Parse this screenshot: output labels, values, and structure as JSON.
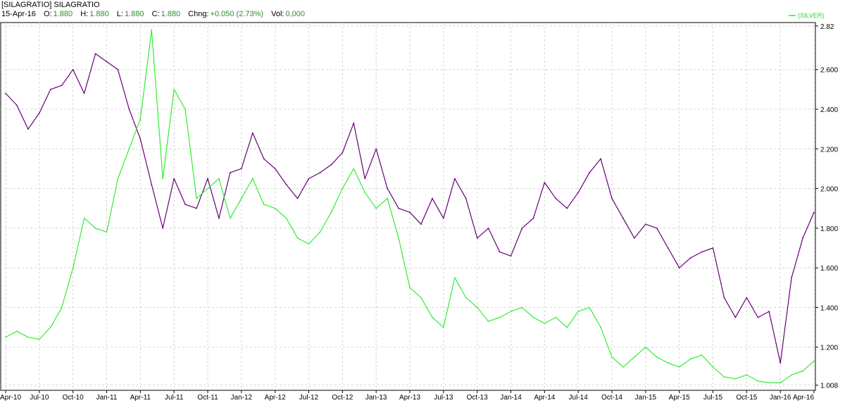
{
  "header": {
    "symbol": "[SILAGRATIO] SILAGRATIO",
    "date": "15-Apr-16",
    "open_label": "O:",
    "open": "1.880",
    "high_label": "H:",
    "high": "1.880",
    "low_label": "L:",
    "low": "1.880",
    "close_label": "C:",
    "close": "1.880",
    "change_label": "Chng:",
    "change": "+0.050 (2.73%)",
    "vol_label": "Vol:",
    "vol": "0,000"
  },
  "chart_data": {
    "type": "line",
    "title": "",
    "xlabel": "",
    "ylabel": "",
    "ylim": [
      1.0,
      2.83
    ],
    "grid": true,
    "legend_position": "top-right",
    "y_ticks": [
      "1.008",
      "1.200",
      "1.400",
      "1.600",
      "1.800",
      "2.000",
      "2.200",
      "2.400",
      "2.600",
      "2.82"
    ],
    "x_ticks": [
      "Apr-10",
      "Jul-10",
      "Oct-10",
      "Jan-11",
      "Apr-11",
      "Jul-11",
      "Oct-11",
      "Jan-12",
      "Apr-12",
      "Jul-12",
      "Oct-12",
      "Jan-13",
      "Apr-13",
      "Jul-13",
      "Oct-13",
      "Jan-14",
      "Apr-14",
      "Jul-14",
      "Oct-14",
      "Jan-15",
      "Apr-15",
      "Jul-15",
      "Oct-15",
      "Jan-16",
      "Apr-16"
    ],
    "x": [
      "Apr-10",
      "May-10",
      "Jun-10",
      "Jul-10",
      "Aug-10",
      "Sep-10",
      "Oct-10",
      "Nov-10",
      "Dec-10",
      "Jan-11",
      "Feb-11",
      "Mar-11",
      "Apr-11",
      "May-11",
      "Jun-11",
      "Jul-11",
      "Aug-11",
      "Sep-11",
      "Oct-11",
      "Nov-11",
      "Dec-11",
      "Jan-12",
      "Feb-12",
      "Mar-12",
      "Apr-12",
      "May-12",
      "Jun-12",
      "Jul-12",
      "Aug-12",
      "Sep-12",
      "Oct-12",
      "Nov-12",
      "Dec-12",
      "Jan-13",
      "Feb-13",
      "Mar-13",
      "Apr-13",
      "May-13",
      "Jun-13",
      "Jul-13",
      "Aug-13",
      "Sep-13",
      "Oct-13",
      "Nov-13",
      "Dec-13",
      "Jan-14",
      "Feb-14",
      "Mar-14",
      "Apr-14",
      "May-14",
      "Jun-14",
      "Jul-14",
      "Aug-14",
      "Sep-14",
      "Oct-14",
      "Nov-14",
      "Dec-14",
      "Jan-15",
      "Feb-15",
      "Mar-15",
      "Apr-15",
      "May-15",
      "Jun-15",
      "Jul-15",
      "Aug-15",
      "Sep-15",
      "Oct-15",
      "Nov-15",
      "Dec-15",
      "Jan-16",
      "Feb-16",
      "Mar-16",
      "Apr-16"
    ],
    "series": [
      {
        "name": "SILAGRATIO",
        "color": "#660077",
        "values": [
          2.48,
          2.42,
          2.3,
          2.38,
          2.5,
          2.52,
          2.6,
          2.48,
          2.68,
          2.64,
          2.6,
          2.4,
          2.25,
          2.02,
          1.8,
          2.05,
          1.92,
          1.9,
          2.05,
          1.85,
          2.08,
          2.1,
          2.28,
          2.15,
          2.1,
          2.02,
          1.95,
          2.05,
          2.08,
          2.12,
          2.18,
          2.33,
          2.05,
          2.2,
          2.0,
          1.9,
          1.88,
          1.82,
          1.95,
          1.85,
          2.05,
          1.95,
          1.75,
          1.8,
          1.68,
          1.66,
          1.8,
          1.85,
          2.03,
          1.95,
          1.9,
          1.98,
          2.08,
          2.15,
          1.95,
          1.85,
          1.75,
          1.82,
          1.8,
          1.7,
          1.6,
          1.65,
          1.68,
          1.7,
          1.45,
          1.35,
          1.45,
          1.35,
          1.38,
          1.12,
          1.55,
          1.75,
          1.88
        ]
      },
      {
        "name": "(SILVER)",
        "color": "#33ee33",
        "values": [
          1.25,
          1.28,
          1.25,
          1.24,
          1.3,
          1.4,
          1.6,
          1.85,
          1.8,
          1.78,
          2.05,
          2.2,
          2.35,
          2.8,
          2.05,
          2.5,
          2.4,
          1.95,
          2.0,
          2.05,
          1.85,
          1.95,
          2.05,
          1.92,
          1.9,
          1.85,
          1.75,
          1.72,
          1.78,
          1.88,
          2.0,
          2.1,
          1.98,
          1.9,
          1.95,
          1.75,
          1.5,
          1.45,
          1.35,
          1.3,
          1.55,
          1.45,
          1.4,
          1.33,
          1.35,
          1.38,
          1.4,
          1.35,
          1.32,
          1.35,
          1.3,
          1.38,
          1.4,
          1.3,
          1.15,
          1.1,
          1.15,
          1.2,
          1.15,
          1.12,
          1.1,
          1.14,
          1.16,
          1.1,
          1.05,
          1.04,
          1.06,
          1.03,
          1.02,
          1.02,
          1.06,
          1.08,
          1.13
        ]
      }
    ]
  }
}
